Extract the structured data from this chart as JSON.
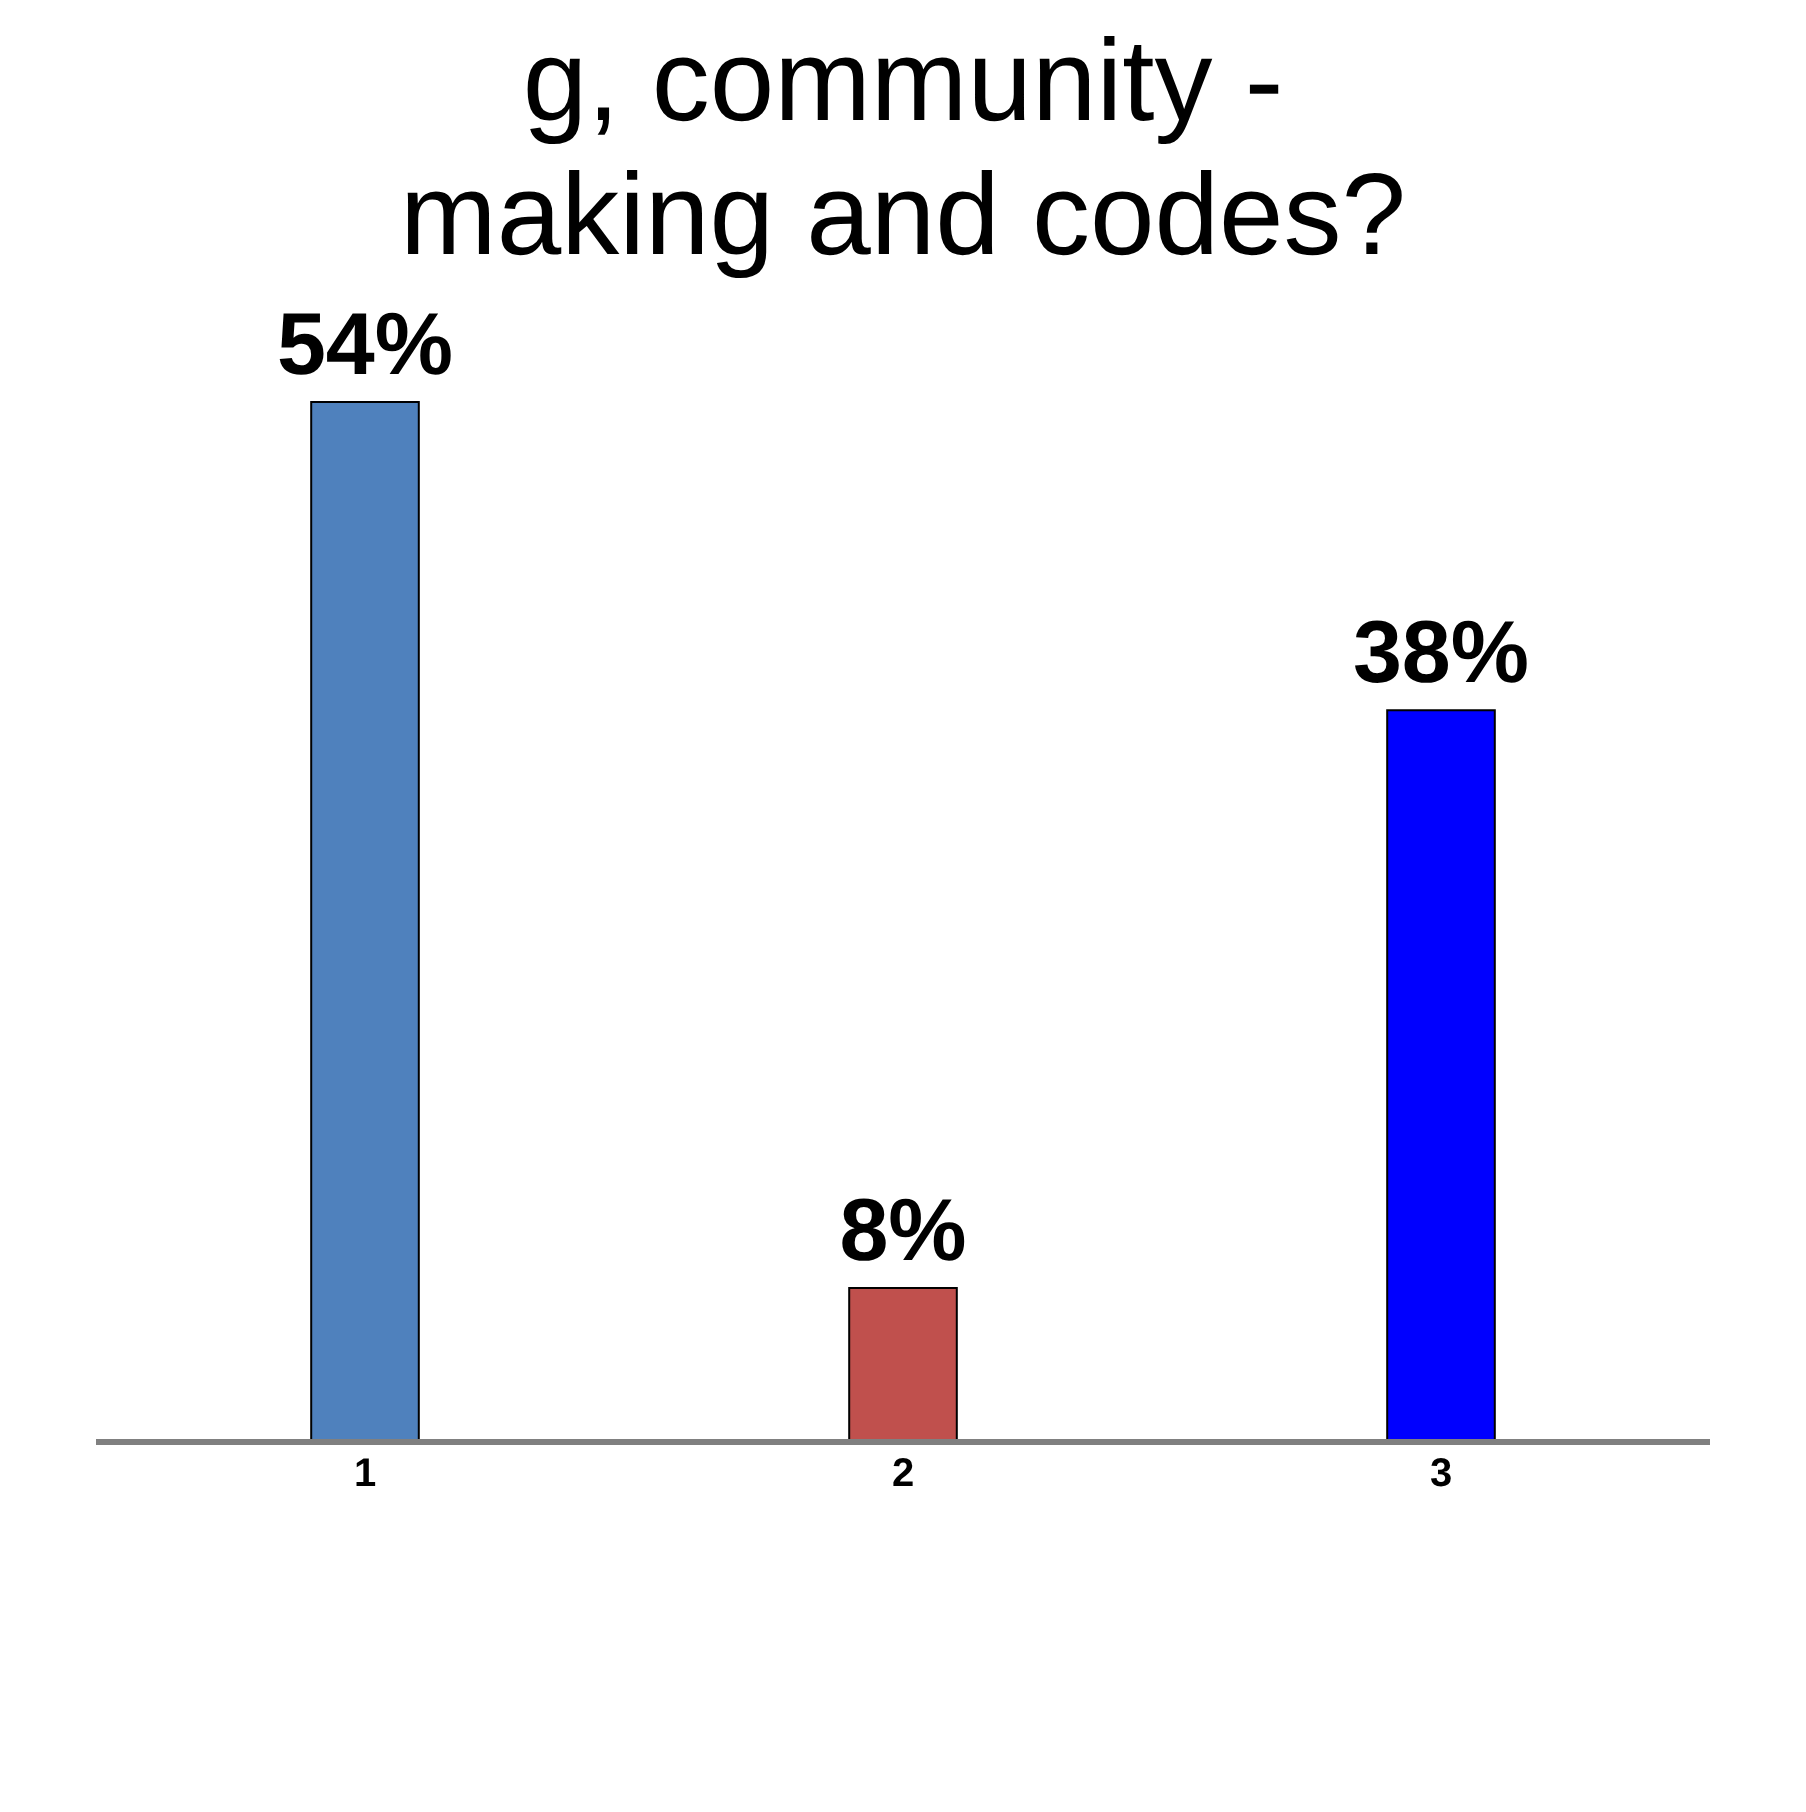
{
  "chart_data": {
    "type": "bar",
    "title": "g, community -making and codes?",
    "categories": [
      "1",
      "2",
      "3"
    ],
    "values": [
      54,
      8,
      38
    ],
    "colors": [
      "#4f81bd",
      "#c0504d",
      "#0000ff"
    ],
    "value_labels": [
      "54%",
      "8%",
      "38%"
    ]
  }
}
